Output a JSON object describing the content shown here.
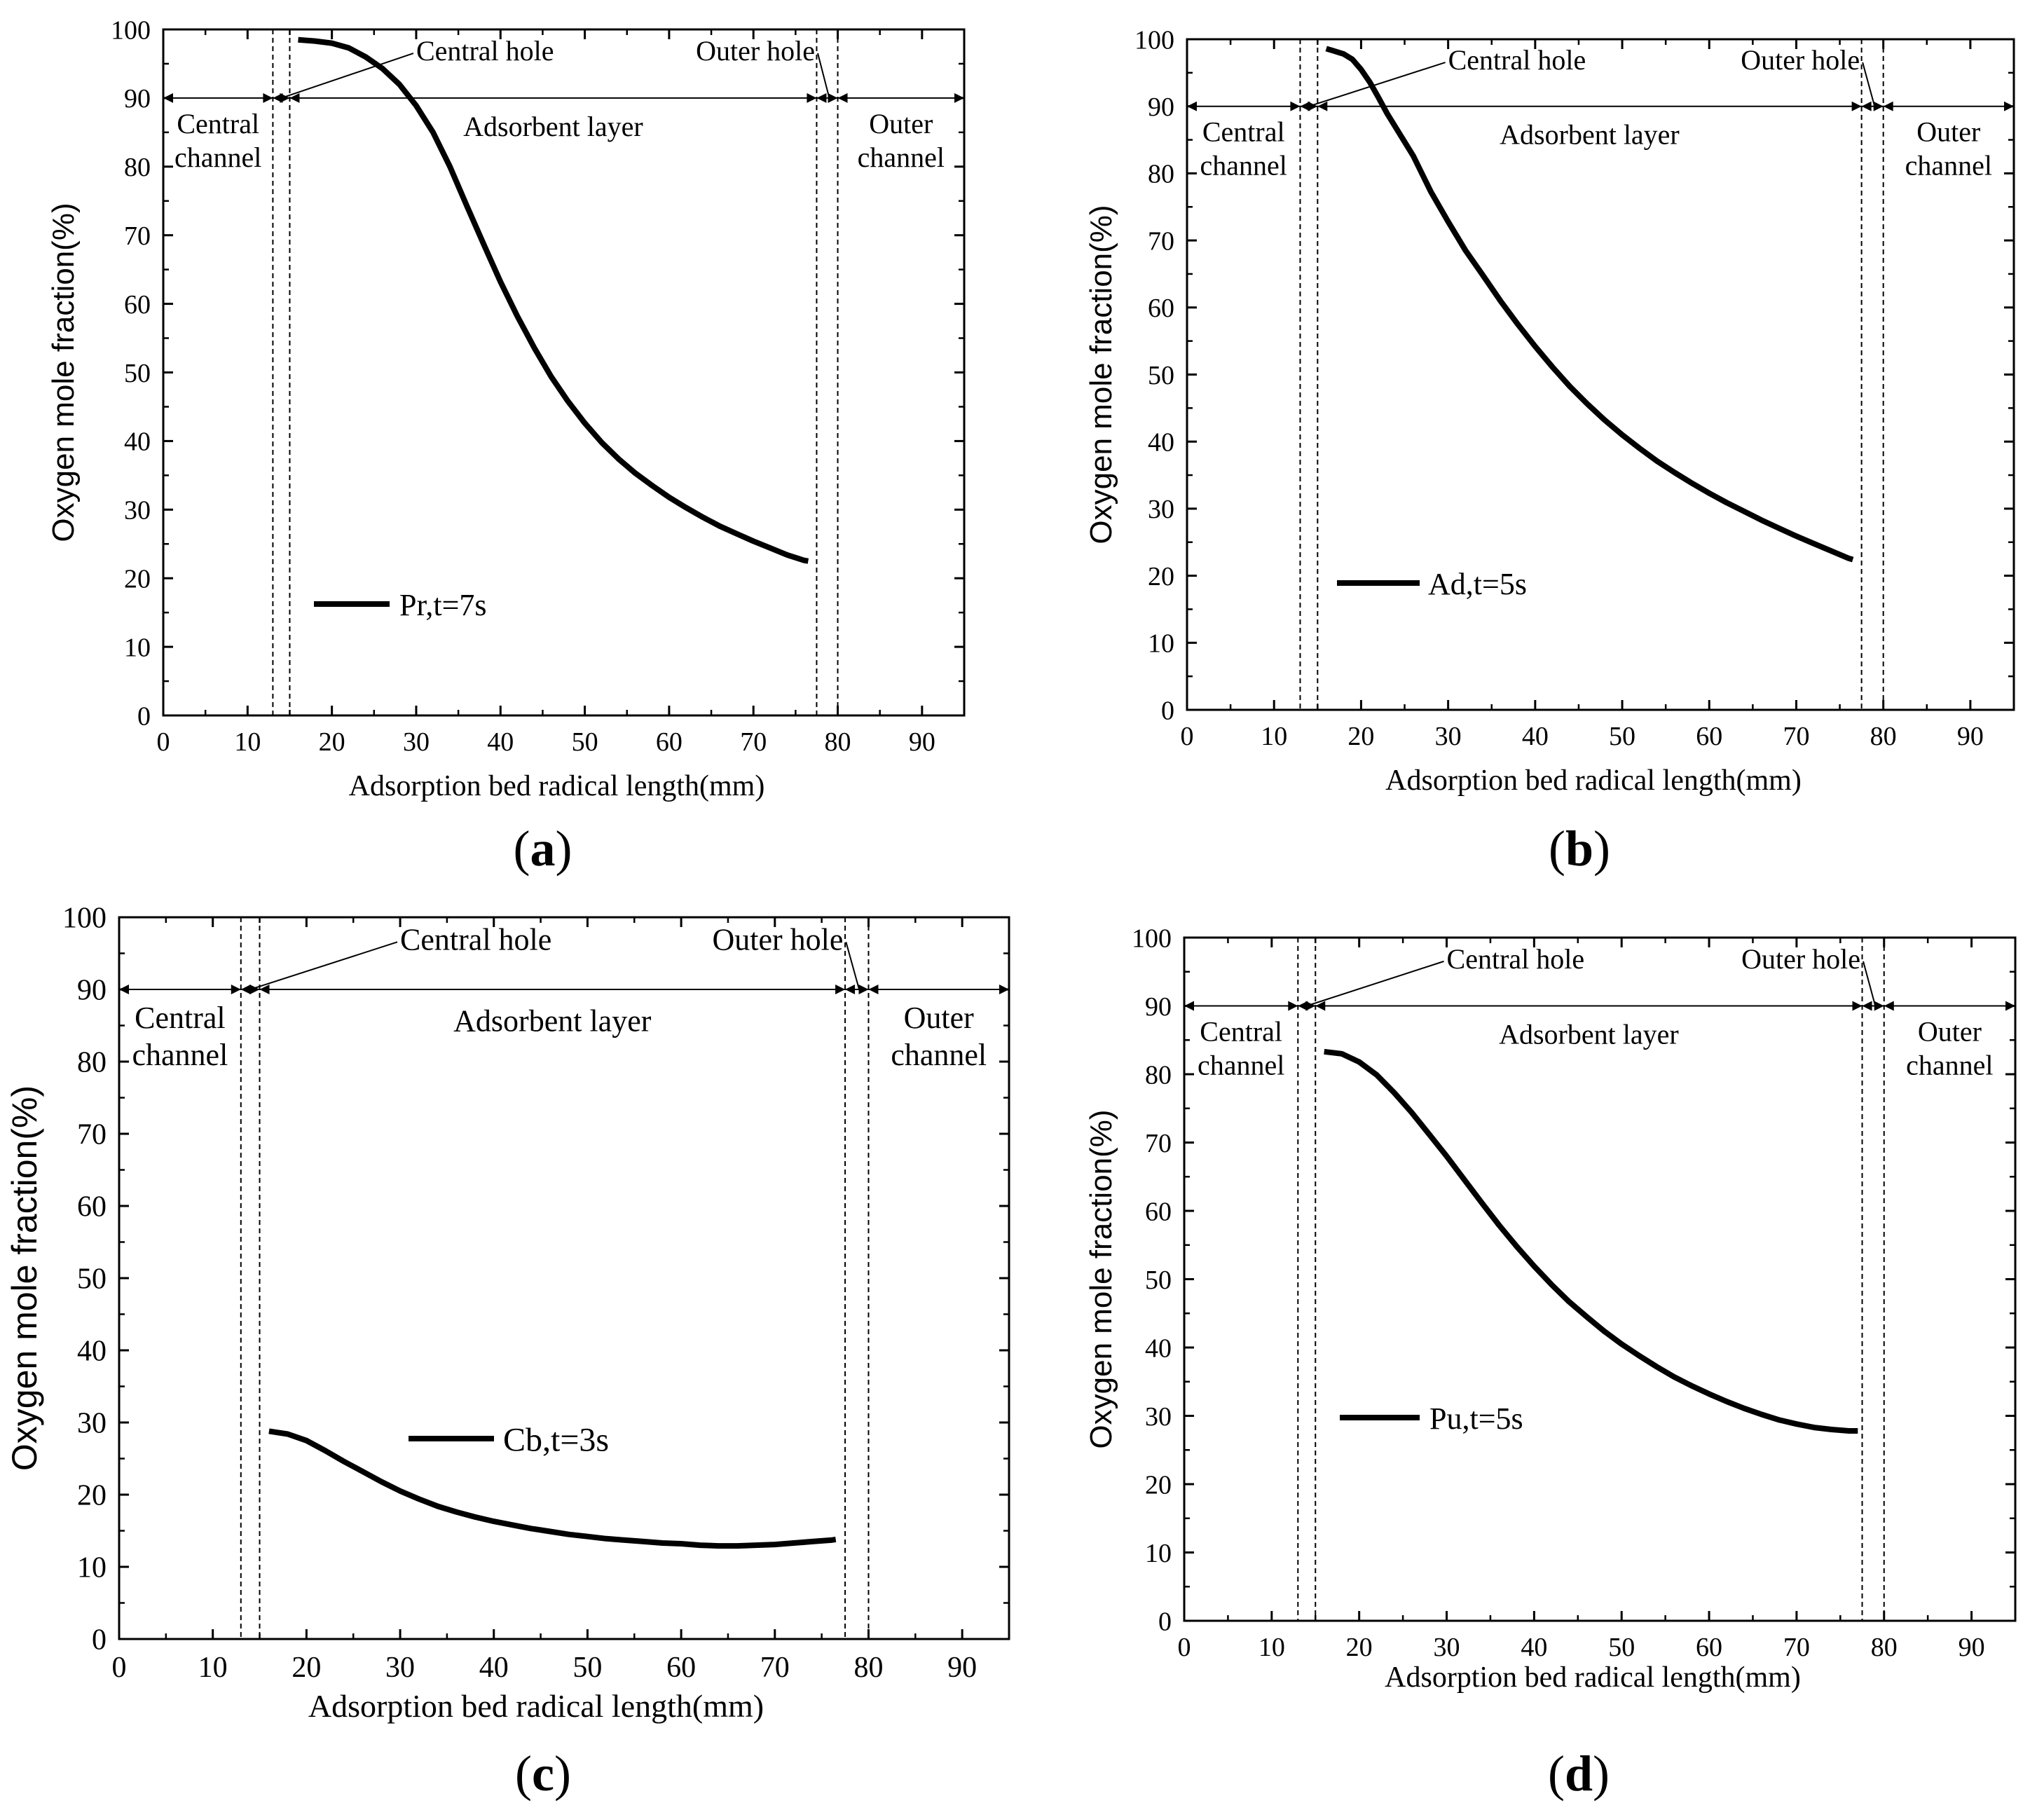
{
  "figure": {
    "chart_data": [
      {
        "id": "a",
        "type": "line",
        "panel_label": "(a)",
        "xlabel": "Adsorption bed radical length(mm)",
        "ylabel": "Oxygen mole fraction(%)",
        "xlim": [
          0,
          95
        ],
        "ylim": [
          0,
          100
        ],
        "xticks": [
          0,
          10,
          20,
          30,
          40,
          50,
          60,
          70,
          80,
          90
        ],
        "yticks": [
          0,
          10,
          20,
          30,
          40,
          50,
          60,
          70,
          80,
          90,
          100
        ],
        "region_boundaries": [
          13,
          15,
          77.5,
          80
        ],
        "annotations": {
          "central_channel": [
            "Central",
            "channel"
          ],
          "central_hole": "Central hole",
          "adsorbent_layer": "Adsorbent layer",
          "outer_hole": "Outer hole",
          "outer_channel": [
            "Outer",
            "channel"
          ]
        },
        "series": [
          {
            "name": "Pr,t=7s",
            "x": [
              16,
              18,
              20,
              22,
              24,
              26,
              28,
              30,
              32,
              34,
              36,
              38,
              40,
              42,
              44,
              46,
              48,
              50,
              52,
              54,
              56,
              58,
              60,
              62,
              64,
              66,
              68,
              70,
              72,
              74,
              76,
              76.5
            ],
            "values": [
              98.5,
              98.3,
              98.0,
              97.3,
              96.0,
              94.3,
              92.0,
              88.9,
              85.0,
              80.0,
              74.3,
              68.7,
              63.2,
              58.2,
              53.6,
              49.4,
              45.8,
              42.6,
              39.8,
              37.4,
              35.3,
              33.5,
              31.8,
              30.3,
              28.9,
              27.6,
              26.5,
              25.4,
              24.4,
              23.4,
              22.6,
              22.5
            ]
          }
        ]
      },
      {
        "id": "b",
        "type": "line",
        "panel_label": "(b)",
        "xlabel": "Adsorption bed radical length(mm)",
        "ylabel": "Oxygen mole fraction(%)",
        "xlim": [
          0,
          95
        ],
        "ylim": [
          0,
          100
        ],
        "xticks": [
          0,
          10,
          20,
          30,
          40,
          50,
          60,
          70,
          80,
          90
        ],
        "yticks": [
          0,
          10,
          20,
          30,
          40,
          50,
          60,
          70,
          80,
          90,
          100
        ],
        "region_boundaries": [
          13,
          15,
          77.5,
          80
        ],
        "annotations": {
          "central_channel": [
            "Central",
            "channel"
          ],
          "central_hole": "Central hole",
          "adsorbent_layer": "Adsorbent layer",
          "outer_hole": "Outer hole",
          "outer_channel": [
            "Outer",
            "channel"
          ]
        },
        "series": [
          {
            "name": "Ad,t=5s",
            "x": [
              16,
              17,
              18,
              19,
              20,
              21,
              22,
              23,
              24,
              26,
              28,
              30,
              32,
              34,
              36,
              38,
              40,
              42,
              44,
              46,
              48,
              50,
              52,
              54,
              56,
              58,
              60,
              62,
              64,
              66,
              68,
              70,
              72,
              74,
              76,
              76.5
            ],
            "values": [
              98.6,
              98.2,
              97.8,
              97.0,
              95.5,
              93.6,
              91.3,
              88.9,
              86.8,
              82.6,
              77.3,
              72.8,
              68.5,
              64.8,
              61.0,
              57.5,
              54.2,
              51.1,
              48.2,
              45.6,
              43.2,
              41.0,
              39.0,
              37.1,
              35.4,
              33.8,
              32.3,
              30.9,
              29.6,
              28.3,
              27.1,
              25.9,
              24.8,
              23.7,
              22.6,
              22.4
            ]
          }
        ]
      },
      {
        "id": "c",
        "type": "line",
        "panel_label": "(c)",
        "xlabel": "Adsorption bed radical length(mm)",
        "ylabel": "Oxygen mole fraction(%)",
        "xlim": [
          0,
          95
        ],
        "ylim": [
          0,
          100
        ],
        "xticks": [
          0,
          10,
          20,
          30,
          40,
          50,
          60,
          70,
          80,
          90
        ],
        "yticks": [
          0,
          10,
          20,
          30,
          40,
          50,
          60,
          70,
          80,
          90,
          100
        ],
        "region_boundaries": [
          13,
          15,
          77.5,
          80
        ],
        "annotations": {
          "central_channel": [
            "Central",
            "channel"
          ],
          "central_hole": "Central hole",
          "adsorbent_layer": "Adsorbent layer",
          "outer_hole": "Outer hole",
          "outer_channel": [
            "Outer",
            "channel"
          ]
        },
        "series": [
          {
            "name": "Cb,t=3s",
            "x": [
              16,
              18,
              20,
              22,
              24,
              26,
              28,
              30,
              32,
              34,
              36,
              38,
              40,
              42,
              44,
              46,
              48,
              50,
              52,
              54,
              56,
              58,
              60,
              62,
              64,
              66,
              68,
              70,
              72,
              74,
              76,
              76.5
            ],
            "values": [
              28.8,
              28.4,
              27.5,
              26.1,
              24.6,
              23.2,
              21.8,
              20.5,
              19.4,
              18.4,
              17.6,
              16.9,
              16.3,
              15.8,
              15.3,
              14.9,
              14.5,
              14.2,
              13.9,
              13.7,
              13.5,
              13.3,
              13.2,
              13.0,
              12.9,
              12.9,
              13.0,
              13.1,
              13.3,
              13.5,
              13.7,
              13.8
            ]
          }
        ]
      },
      {
        "id": "d",
        "type": "line",
        "panel_label": "(d)",
        "xlabel": "Adsorption bed radical length(mm)",
        "ylabel": "Oxygen mole fraction(%)",
        "xlim": [
          0,
          95
        ],
        "ylim": [
          0,
          100
        ],
        "xticks": [
          0,
          10,
          20,
          30,
          40,
          50,
          60,
          70,
          80,
          90
        ],
        "yticks": [
          0,
          10,
          20,
          30,
          40,
          50,
          60,
          70,
          80,
          90,
          100
        ],
        "region_boundaries": [
          13,
          15,
          77.5,
          80
        ],
        "annotations": {
          "central_channel": [
            "Central",
            "channel"
          ],
          "central_hole": "Central hole",
          "adsorbent_layer": "Adsorbent layer",
          "outer_hole": "Outer hole",
          "outer_channel": [
            "Outer",
            "channel"
          ]
        },
        "series": [
          {
            "name": "Pu,t=5s",
            "x": [
              16,
              18,
              20,
              22,
              24,
              26,
              28,
              30,
              32,
              34,
              36,
              38,
              40,
              42,
              44,
              46,
              48,
              50,
              52,
              54,
              56,
              58,
              60,
              62,
              64,
              66,
              68,
              70,
              72,
              74,
              76,
              77
            ],
            "values": [
              83.3,
              83.0,
              81.8,
              79.9,
              77.3,
              74.4,
              71.2,
              68.0,
              64.6,
              61.2,
              57.9,
              54.8,
              51.9,
              49.2,
              46.7,
              44.5,
              42.4,
              40.5,
              38.8,
              37.2,
              35.7,
              34.4,
              33.2,
              32.1,
              31.1,
              30.2,
              29.4,
              28.8,
              28.3,
              28.0,
              27.8,
              27.8
            ]
          }
        ]
      }
    ]
  }
}
